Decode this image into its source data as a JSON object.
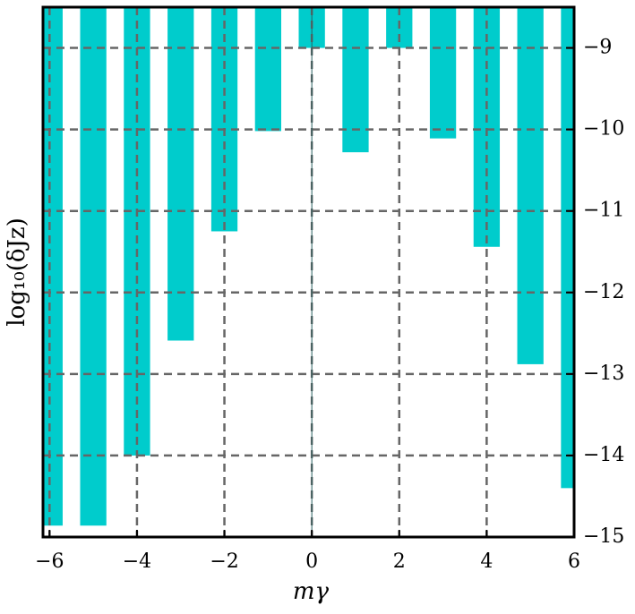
{
  "chart_data": {
    "type": "bar",
    "xlabel": "mγ",
    "ylabel": "log₁₀(δJz)",
    "x": [
      -6,
      -5,
      -4,
      -3,
      -2,
      -1,
      0,
      1,
      2,
      3,
      4,
      5,
      6
    ],
    "values": [
      -14.86,
      -14.86,
      -14.0,
      -12.59,
      -11.25,
      -10.02,
      -9.0,
      -10.28,
      -9.0,
      -10.11,
      -11.44,
      -12.88,
      -14.4
    ],
    "color": "#00cccc",
    "xlim": [
      -6.15,
      6
    ],
    "ylim": [
      -15,
      -8.5
    ],
    "xticks": [
      {
        "value": -6,
        "label": "−6"
      },
      {
        "value": -4,
        "label": "−4"
      },
      {
        "value": -2,
        "label": "−2"
      },
      0,
      2,
      4,
      6
    ],
    "yticks": [
      {
        "value": -15,
        "label": "−15"
      },
      {
        "value": -14,
        "label": "−14"
      },
      {
        "value": -13,
        "label": "−13"
      },
      {
        "value": -12,
        "label": "−12"
      },
      {
        "value": -11,
        "label": "−11"
      },
      {
        "value": -10,
        "label": "−10"
      },
      {
        "value": -9,
        "label": "−9"
      }
    ],
    "grid": true
  }
}
